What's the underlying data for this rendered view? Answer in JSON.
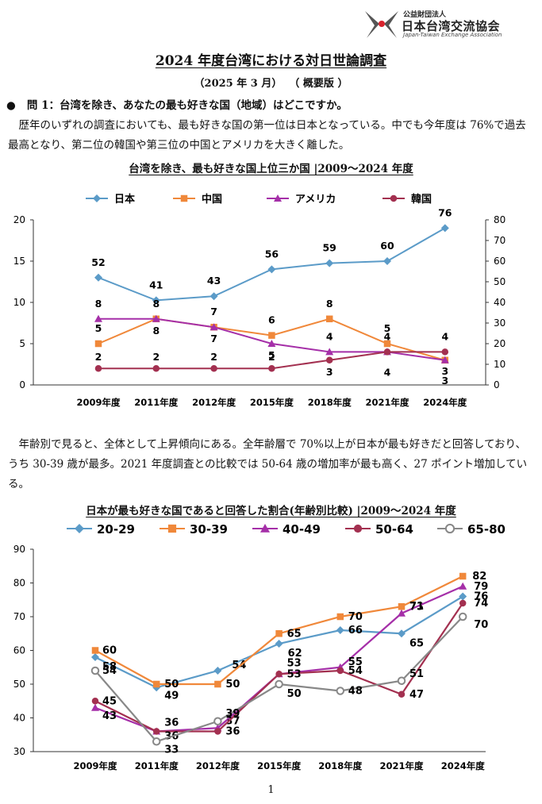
{
  "header": {
    "org_sub": "公益財団法人",
    "org_name": "日本台湾交流協会",
    "org_en": "Japan-Taiwan Exchange Association"
  },
  "document": {
    "title": "2024 年度台湾における対日世論調査",
    "date": "（2025 年 3 月）  （ 概要版 ）",
    "question": "●   問 1：台湾を除き、あなたの最も好きな国（地域）はどこですか。",
    "paragraph1": "歴年のいずれの調査においても、最も好きな国の第一位は日本となっている。中でも今年度は 76%で過去最高となり、第二位の韓国や第三位の中国とアメリカを大きく離した。",
    "paragraph2": "年齢別で見ると、全体として上昇傾向にある。全年齢層で 70%以上が日本が最も好きだと回答しており、うち 30-39 歳が最多。2021 年度調査との比較では 50-64 歳の増加率が最も高く、27 ポイント増加している。",
    "page_number": "1"
  },
  "chart_data": [
    {
      "type": "line",
      "title": "台湾を除き、最も好きな国上位三か国 |2009～2024 年度",
      "categories": [
        "2009年度",
        "2011年度",
        "2012年度",
        "2015年度",
        "2018年度",
        "2021年度",
        "2024年度"
      ],
      "series": [
        {
          "name": "日本",
          "axis": "right",
          "color": "#5b9bc8",
          "marker": "diamond",
          "values": [
            52,
            41,
            43,
            56,
            59,
            60,
            76
          ]
        },
        {
          "name": "中国",
          "axis": "left",
          "color": "#f0883a",
          "marker": "square",
          "values": [
            5,
            8,
            7,
            6,
            8,
            5,
            3
          ]
        },
        {
          "name": "アメリカ",
          "axis": "left",
          "color": "#a52fa8",
          "marker": "triangle",
          "values": [
            8,
            8,
            7,
            5,
            4,
            4,
            3
          ]
        },
        {
          "name": "韓国",
          "axis": "left",
          "color": "#a33050",
          "marker": "circle",
          "values": [
            2,
            2,
            2,
            2,
            3,
            4,
            4
          ]
        }
      ],
      "ylim_left": [
        0,
        20
      ],
      "yticks_left": [
        0,
        5,
        10,
        15,
        20
      ],
      "ylim_right": [
        0,
        80
      ],
      "yticks_right": [
        0,
        10,
        20,
        30,
        40,
        50,
        60,
        70,
        80
      ],
      "legend_position": "top",
      "grid": false
    },
    {
      "type": "line",
      "title": "日本が最も好きな国であると回答した割合(年齢別比較) |2009～2024 年度",
      "categories": [
        "2009年度",
        "2011年度",
        "2012年度",
        "2015年度",
        "2018年度",
        "2021年度",
        "2024年度"
      ],
      "series": [
        {
          "name": "20-29",
          "color": "#5b9bc8",
          "marker": "diamond",
          "values": [
            58,
            49,
            54,
            62,
            66,
            65,
            76
          ]
        },
        {
          "name": "30-39",
          "color": "#f0883a",
          "marker": "square",
          "values": [
            60,
            50,
            50,
            65,
            70,
            73,
            82
          ]
        },
        {
          "name": "40-49",
          "color": "#a52fa8",
          "marker": "triangle",
          "values": [
            43,
            36,
            37,
            53,
            55,
            71,
            79
          ]
        },
        {
          "name": "50-64",
          "color": "#a33050",
          "marker": "circle",
          "values": [
            45,
            36,
            36,
            53,
            54,
            47,
            74
          ]
        },
        {
          "name": "65-80",
          "color": "#888888",
          "marker": "open-circle",
          "values": [
            54,
            33,
            39,
            50,
            48,
            51,
            70
          ]
        }
      ],
      "ylim": [
        30,
        90
      ],
      "yticks": [
        30,
        40,
        50,
        60,
        70,
        80,
        90
      ],
      "legend_position": "top",
      "grid": false
    }
  ]
}
